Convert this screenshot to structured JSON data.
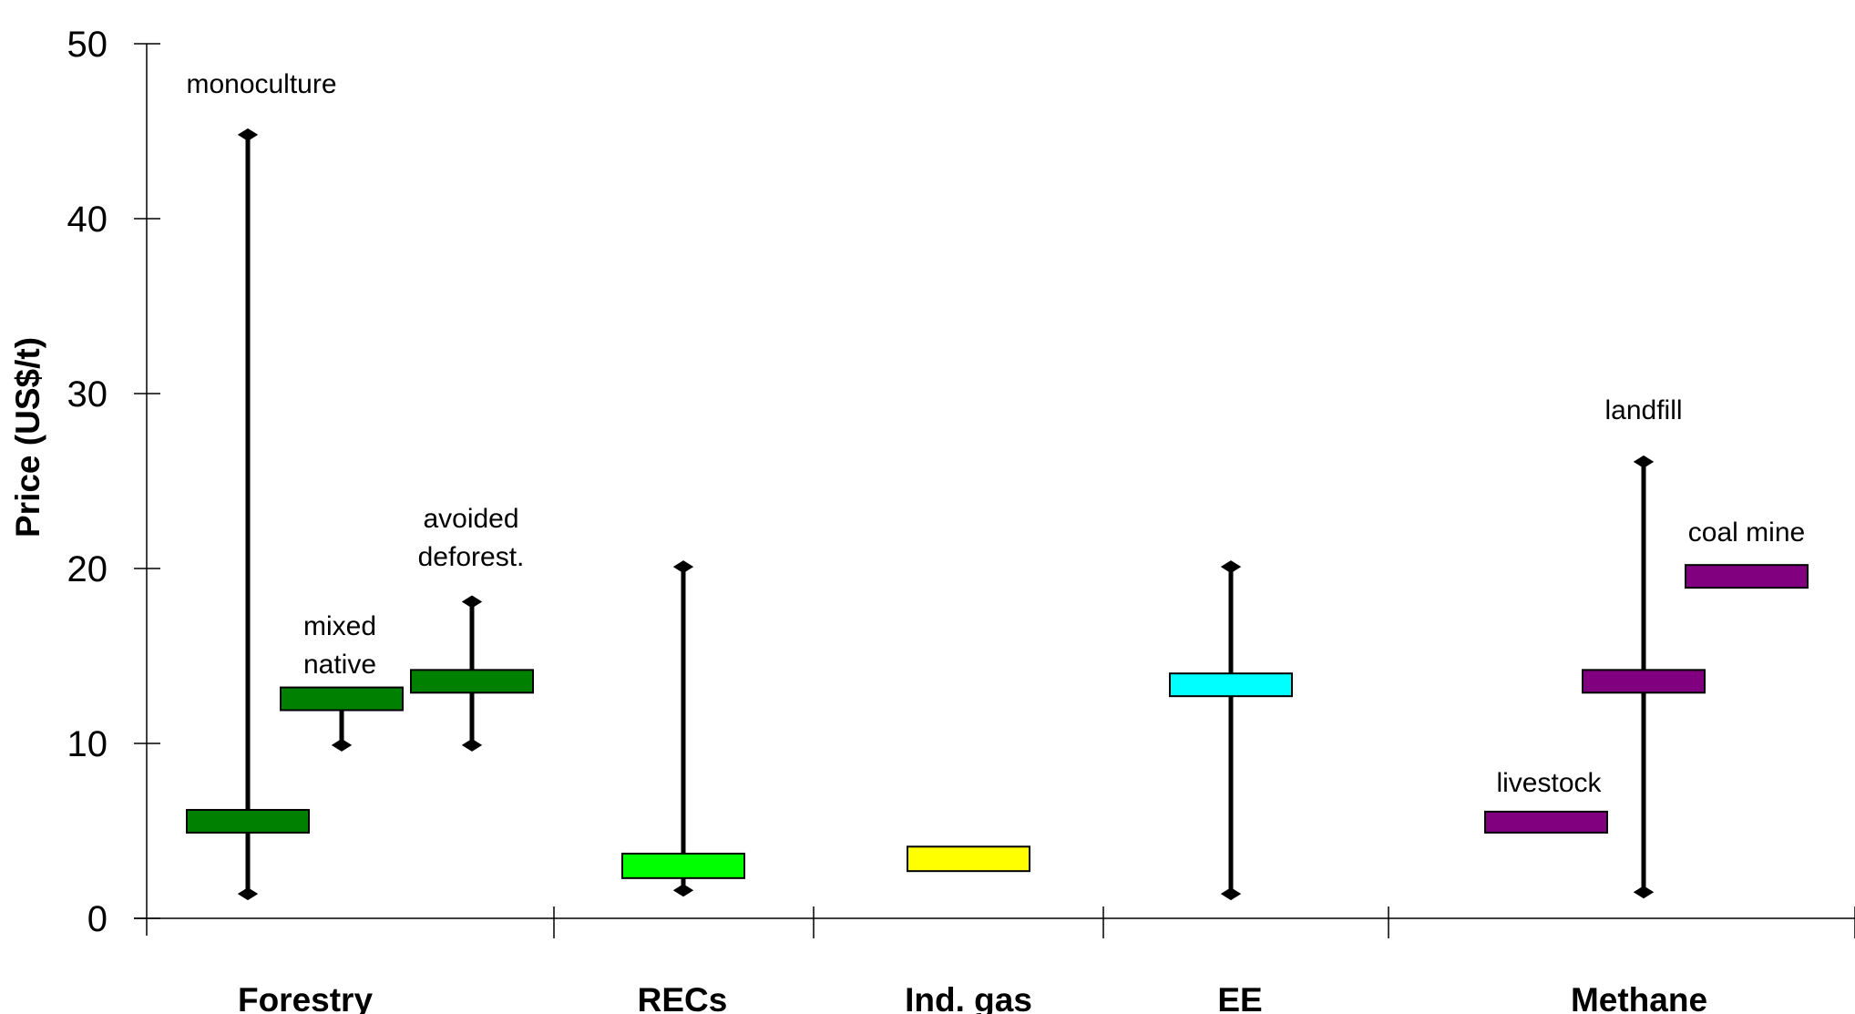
{
  "chart_data": {
    "type": "range",
    "title": "",
    "ylabel": "Price (US$/t)",
    "xlabel": "",
    "ylim": [
      0,
      50
    ],
    "yticks": [
      0,
      10,
      20,
      30,
      40,
      50
    ],
    "grid": false,
    "legend": "none",
    "categories": [
      "Forestry",
      "RECs",
      "Ind. gas",
      "EE",
      "Methane"
    ],
    "series": [
      {
        "name": "monoculture",
        "category": "Forestry",
        "low": 1.4,
        "high": 44.8,
        "box_low": 4.9,
        "box_high": 6.2,
        "color": "#008000"
      },
      {
        "name": "mixed native",
        "category": "Forestry",
        "low": 9.9,
        "high": 13.2,
        "box_low": 11.9,
        "box_high": 13.2,
        "color": "#008000"
      },
      {
        "name": "avoided deforest.",
        "category": "Forestry",
        "low": 9.9,
        "high": 18.1,
        "box_low": 12.9,
        "box_high": 14.2,
        "color": "#008000"
      },
      {
        "name": "",
        "category": "RECs",
        "low": 1.6,
        "high": 20.1,
        "box_low": 2.3,
        "box_high": 3.7,
        "color": "#00ff00"
      },
      {
        "name": "",
        "category": "Ind. gas",
        "low": 2.7,
        "high": 4.1,
        "box_low": 2.7,
        "box_high": 4.1,
        "color": "#ffff00"
      },
      {
        "name": "",
        "category": "EE",
        "low": 1.4,
        "high": 20.1,
        "box_low": 12.7,
        "box_high": 14.0,
        "color": "#00ffff"
      },
      {
        "name": "livestock",
        "category": "Methane",
        "low": 4.9,
        "high": 6.1,
        "box_low": 4.9,
        "box_high": 6.1,
        "color": "#800080"
      },
      {
        "name": "landfill",
        "category": "Methane",
        "low": 1.5,
        "high": 26.1,
        "box_low": 12.9,
        "box_high": 14.2,
        "color": "#800080"
      },
      {
        "name": "coal mine",
        "category": "Methane",
        "low": 18.9,
        "high": 20.2,
        "box_low": 18.9,
        "box_high": 20.2,
        "color": "#800080"
      }
    ]
  }
}
